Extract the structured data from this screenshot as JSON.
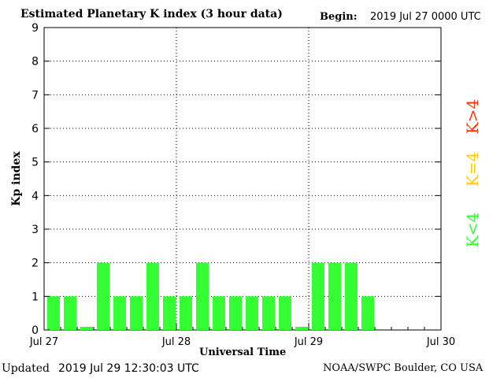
{
  "header": {
    "title": "Estimated Planetary K index (3 hour data)",
    "begin_label": "Begin:",
    "begin_value": "2019 Jul 27 0000 UTC"
  },
  "footer": {
    "updated_label": "Updated",
    "updated_value": "2019 Jul 29 12:30:03 UTC",
    "credit": "NOAA/SWPC Boulder, CO USA"
  },
  "legend": {
    "low": {
      "label": "K<4",
      "color": "#33ff33"
    },
    "mid": {
      "label": "K=4",
      "color": "#ffcc00"
    },
    "high": {
      "label": "K>4",
      "color": "#ff3300"
    }
  },
  "chart_data": {
    "type": "bar",
    "title": "Estimated Planetary K index (3 hour data)",
    "xlabel": "Universal Time",
    "ylabel": "Kp index",
    "ylim": [
      0,
      9
    ],
    "yticks": [
      "0",
      "1",
      "2",
      "3",
      "4",
      "5",
      "6",
      "7",
      "8",
      "9"
    ],
    "xtick_labels": [
      "Jul 27",
      "Jul 28",
      "Jul 29",
      "Jul 30"
    ],
    "slots": 24,
    "grid": true,
    "bar_color": "#33ff33",
    "values": [
      1,
      1,
      0,
      2,
      1,
      1,
      2,
      1,
      1,
      2,
      1,
      1,
      1,
      1,
      1,
      0,
      2,
      2,
      2,
      1
    ]
  }
}
